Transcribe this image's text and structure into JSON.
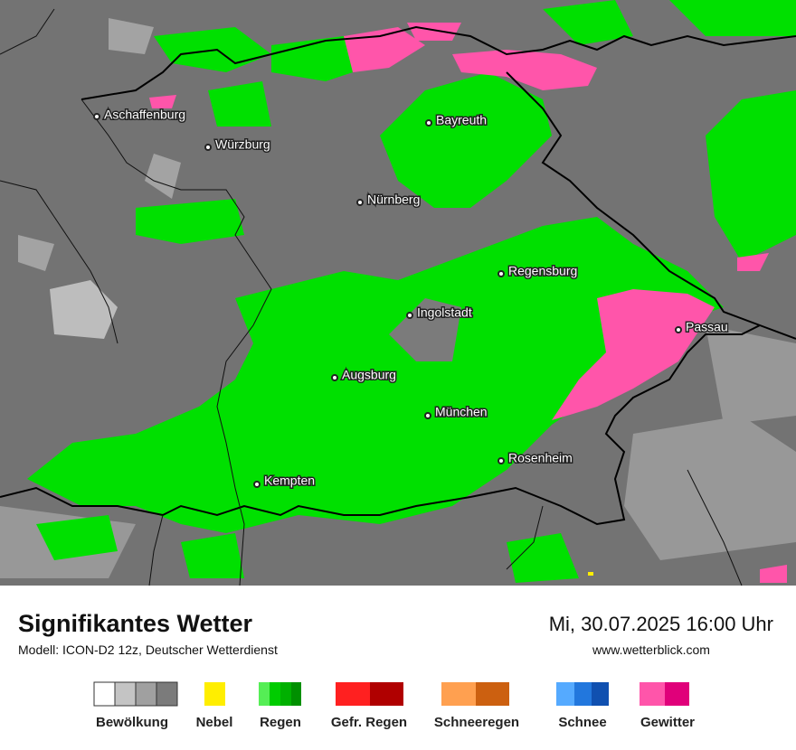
{
  "map": {
    "cities": [
      "Aschaffenburg",
      "Würzburg",
      "Bayreuth",
      "Nürnberg",
      "Regensburg",
      "Ingolstadt",
      "Passau",
      "Augsburg",
      "München",
      "Rosenheim",
      "Kempten"
    ]
  },
  "footer": {
    "title": "Signifikantes Wetter",
    "subtitle": "Modell: ICON-D2 12z, Deutscher Wetterdienst",
    "datetime": "Mi, 30.07.2025 16:00 Uhr",
    "website": "www.wetterblick.com"
  },
  "legend": [
    "Bewölkung",
    "Nebel",
    "Regen",
    "Gefr. Regen",
    "Schneeregen",
    "Schnee",
    "Gewitter"
  ]
}
